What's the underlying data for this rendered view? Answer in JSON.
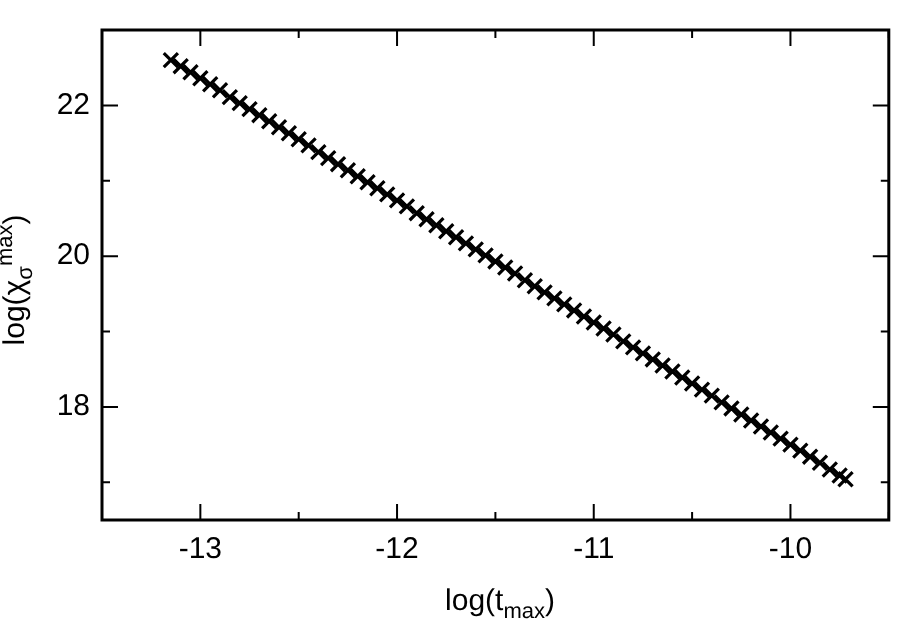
{
  "chart_data": {
    "type": "scatter",
    "xlabel": "log(t$_{max}$)",
    "ylabel": "log(χ$_{σ}$$^{max}$)",
    "marker": "cross",
    "xlim": [
      -13.5,
      -9.5
    ],
    "ylim": [
      16.5,
      23
    ],
    "xticks": [
      {
        "value": -13.5,
        "label": null
      },
      -13,
      {
        "value": -12.5,
        "label": null
      },
      -12,
      {
        "value": -11.5,
        "label": null
      },
      -11,
      {
        "value": -10.5,
        "label": null
      },
      -10,
      {
        "value": -9.5,
        "label": null
      }
    ],
    "yticks": [
      {
        "value": 17,
        "label": null
      },
      18,
      {
        "value": 19,
        "label": null
      },
      20,
      {
        "value": 21,
        "label": null
      },
      22
    ],
    "series": [
      {
        "color": "#000000",
        "x": [
          -13.15,
          -13.1,
          -13.05,
          -13,
          -12.95,
          -12.9,
          -12.85,
          -12.8,
          -12.75,
          -12.7,
          -12.65,
          -12.6,
          -12.55,
          -12.5,
          -12.45,
          -12.4,
          -12.35,
          -12.3,
          -12.25,
          -12.2,
          -12.15,
          -12.1,
          -12.05,
          -12,
          -11.95,
          -11.9,
          -11.85,
          -11.8,
          -11.75,
          -11.7,
          -11.65,
          -11.6,
          -11.55,
          -11.5,
          -11.45,
          -11.4,
          -11.35,
          -11.3,
          -11.25,
          -11.2,
          -11.15,
          -11.1,
          -11.05,
          -11,
          -10.95,
          -10.9,
          -10.85,
          -10.8,
          -10.75,
          -10.7,
          -10.65,
          -10.6,
          -10.55,
          -10.5,
          -10.45,
          -10.4,
          -10.35,
          -10.3,
          -10.25,
          -10.2,
          -10.15,
          -10.1,
          -10.05,
          -10,
          -9.95,
          -9.9,
          -9.85,
          -9.8,
          -9.75,
          -9.72
        ],
        "values": [
          22.6,
          22.52,
          22.44,
          22.36,
          22.28,
          22.2,
          22.11,
          22.03,
          21.95,
          21.87,
          21.79,
          21.71,
          21.63,
          21.55,
          21.47,
          21.38,
          21.3,
          21.22,
          21.14,
          21.06,
          20.98,
          20.9,
          20.82,
          20.74,
          20.66,
          20.57,
          20.49,
          20.41,
          20.33,
          20.25,
          20.17,
          20.09,
          20.01,
          19.93,
          19.85,
          19.77,
          19.68,
          19.6,
          19.52,
          19.44,
          19.36,
          19.28,
          19.2,
          19.12,
          19.04,
          18.96,
          18.87,
          18.79,
          18.71,
          18.63,
          18.55,
          18.47,
          18.39,
          18.31,
          18.23,
          18.15,
          18.06,
          17.98,
          17.9,
          17.82,
          17.74,
          17.66,
          17.58,
          17.5,
          17.42,
          17.34,
          17.26,
          17.17,
          17.09,
          17.04
        ]
      }
    ]
  }
}
